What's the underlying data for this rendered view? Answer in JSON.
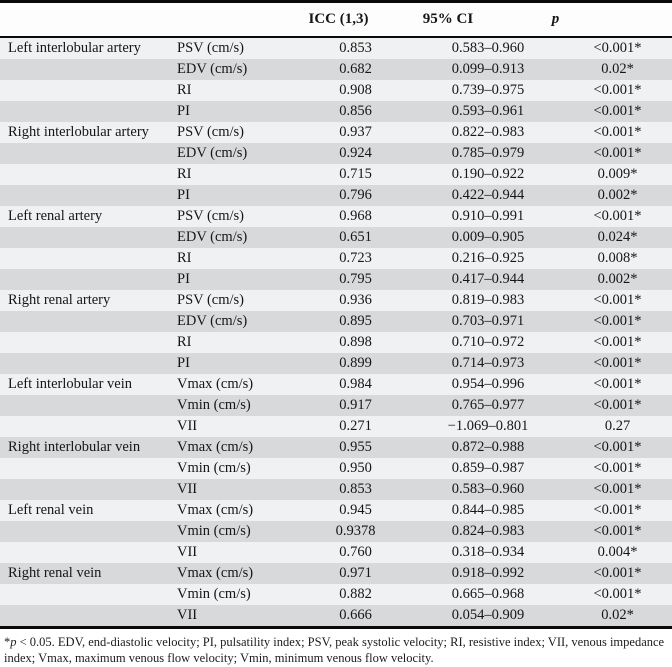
{
  "table": {
    "headers": {
      "group": "",
      "parameter": "",
      "icc": "ICC (1,3)",
      "ci": "95% CI",
      "p": "p"
    },
    "groups": [
      {
        "name": "Left interlobular artery",
        "rows": [
          {
            "param": "PSV (cm/s)",
            "icc": "0.853",
            "ci": "0.583–0.960",
            "p": "<0.001*"
          },
          {
            "param": "EDV (cm/s)",
            "icc": "0.682",
            "ci": "0.099–0.913",
            "p": "0.02*"
          },
          {
            "param": "RI",
            "icc": "0.908",
            "ci": "0.739–0.975",
            "p": "<0.001*"
          },
          {
            "param": "PI",
            "icc": "0.856",
            "ci": "0.593–0.961",
            "p": "<0.001*"
          }
        ]
      },
      {
        "name": "Right interlobular artery",
        "rows": [
          {
            "param": "PSV (cm/s)",
            "icc": "0.937",
            "ci": "0.822–0.983",
            "p": "<0.001*"
          },
          {
            "param": "EDV (cm/s)",
            "icc": "0.924",
            "ci": "0.785–0.979",
            "p": "<0.001*"
          },
          {
            "param": "RI",
            "icc": "0.715",
            "ci": "0.190–0.922",
            "p": "0.009*"
          },
          {
            "param": "PI",
            "icc": "0.796",
            "ci": "0.422–0.944",
            "p": "0.002*"
          }
        ]
      },
      {
        "name": "Left renal artery",
        "rows": [
          {
            "param": "PSV (cm/s)",
            "icc": "0.968",
            "ci": "0.910–0.991",
            "p": "<0.001*"
          },
          {
            "param": "EDV (cm/s)",
            "icc": "0.651",
            "ci": "0.009–0.905",
            "p": "0.024*"
          },
          {
            "param": "RI",
            "icc": "0.723",
            "ci": "0.216–0.925",
            "p": "0.008*"
          },
          {
            "param": "PI",
            "icc": "0.795",
            "ci": "0.417–0.944",
            "p": "0.002*"
          }
        ]
      },
      {
        "name": "Right renal artery",
        "rows": [
          {
            "param": "PSV (cm/s)",
            "icc": "0.936",
            "ci": "0.819–0.983",
            "p": "<0.001*"
          },
          {
            "param": "EDV (cm/s)",
            "icc": "0.895",
            "ci": "0.703–0.971",
            "p": "<0.001*"
          },
          {
            "param": "RI",
            "icc": "0.898",
            "ci": "0.710–0.972",
            "p": "<0.001*"
          },
          {
            "param": "PI",
            "icc": "0.899",
            "ci": "0.714–0.973",
            "p": "<0.001*"
          }
        ]
      },
      {
        "name": "Left interlobular vein",
        "rows": [
          {
            "param": "Vmax (cm/s)",
            "icc": "0.984",
            "ci": "0.954–0.996",
            "p": "<0.001*"
          },
          {
            "param": "Vmin (cm/s)",
            "icc": "0.917",
            "ci": "0.765–0.977",
            "p": "<0.001*"
          },
          {
            "param": "VII",
            "icc": "0.271",
            "ci": "−1.069–0.801",
            "p": "0.27"
          }
        ]
      },
      {
        "name": "Right interlobular vein",
        "rows": [
          {
            "param": "Vmax (cm/s)",
            "icc": "0.955",
            "ci": "0.872–0.988",
            "p": "<0.001*"
          },
          {
            "param": "Vmin (cm/s)",
            "icc": "0.950",
            "ci": "0.859–0.987",
            "p": "<0.001*"
          },
          {
            "param": "VII",
            "icc": "0.853",
            "ci": "0.583–0.960",
            "p": "<0.001*"
          }
        ]
      },
      {
        "name": "Left renal vein",
        "rows": [
          {
            "param": "Vmax (cm/s)",
            "icc": "0.945",
            "ci": "0.844–0.985",
            "p": "<0.001*"
          },
          {
            "param": "Vmin (cm/s)",
            "icc": "0.9378",
            "ci": "0.824–0.983",
            "p": "<0.001*"
          },
          {
            "param": "VII",
            "icc": "0.760",
            "ci": "0.318–0.934",
            "p": "0.004*"
          }
        ]
      },
      {
        "name": "Right renal vein",
        "rows": [
          {
            "param": "Vmax (cm/s)",
            "icc": "0.971",
            "ci": "0.918–0.992",
            "p": "<0.001*"
          },
          {
            "param": "Vmin (cm/s)",
            "icc": "0.882",
            "ci": "0.665–0.968",
            "p": "<0.001*"
          },
          {
            "param": "VII",
            "icc": "0.666",
            "ci": "0.054–0.909",
            "p": "0.02*"
          }
        ]
      }
    ]
  },
  "footnote": {
    "star": "*",
    "p": "p",
    "rest": " < 0.05. EDV, end-diastolic velocity; PI, pulsatility index; PSV, peak systolic velocity; RI, resistive index; VII, venous impedance index; Vmax, maximum venous flow velocity; Vmin, minimum venous flow velocity."
  },
  "colors": {
    "row_light": "#f0f1f2",
    "row_dark": "#d8d9da",
    "border": "#0a0a0a",
    "text": "#161616"
  }
}
